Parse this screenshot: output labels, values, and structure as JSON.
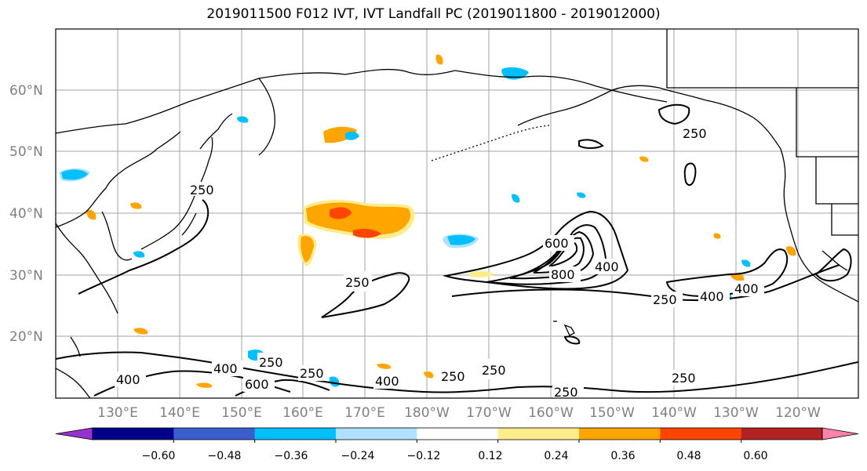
{
  "title": "2019011500 F012 IVT, IVT Landfall PC (2019011800 - 2019012000)",
  "lat_labels": [
    "60°N",
    "50°N",
    "40°N",
    "30°N",
    "20°N"
  ],
  "lon_labels": [
    "130°E",
    "140°E",
    "150°E",
    "160°E",
    "170°E",
    "180°W",
    "170°W",
    "160°W",
    "150°W",
    "140°W",
    "130°W",
    "120°W"
  ],
  "contour_labels": [
    "250",
    "250",
    "250",
    "250",
    "400",
    "400",
    "400",
    "400",
    "400",
    "600",
    "800",
    "250",
    "250",
    "250",
    "250",
    "250",
    "400",
    "250",
    "600"
  ],
  "colorbar": {
    "ticks": [
      "−0.60",
      "−0.48",
      "−0.36",
      "−0.24",
      "−0.12",
      "0.12",
      "0.24",
      "0.36",
      "0.48",
      "0.60"
    ],
    "colors": [
      "#9932cc",
      "#00008b",
      "#3a5fcd",
      "#00bfff",
      "#b0e2ff",
      "#ffffff",
      "#ffec8b",
      "#ffa500",
      "#ff4500",
      "#b22222",
      "#ff82ab"
    ]
  },
  "colors": {
    "contour": "#000000",
    "coast": "#000000",
    "grid": "#808080",
    "positive_light": "#ffec8b",
    "positive_mid": "#ffa500",
    "positive_high": "#ff4500",
    "negative_light": "#b0e2ff",
    "negative_mid": "#00bfff"
  }
}
